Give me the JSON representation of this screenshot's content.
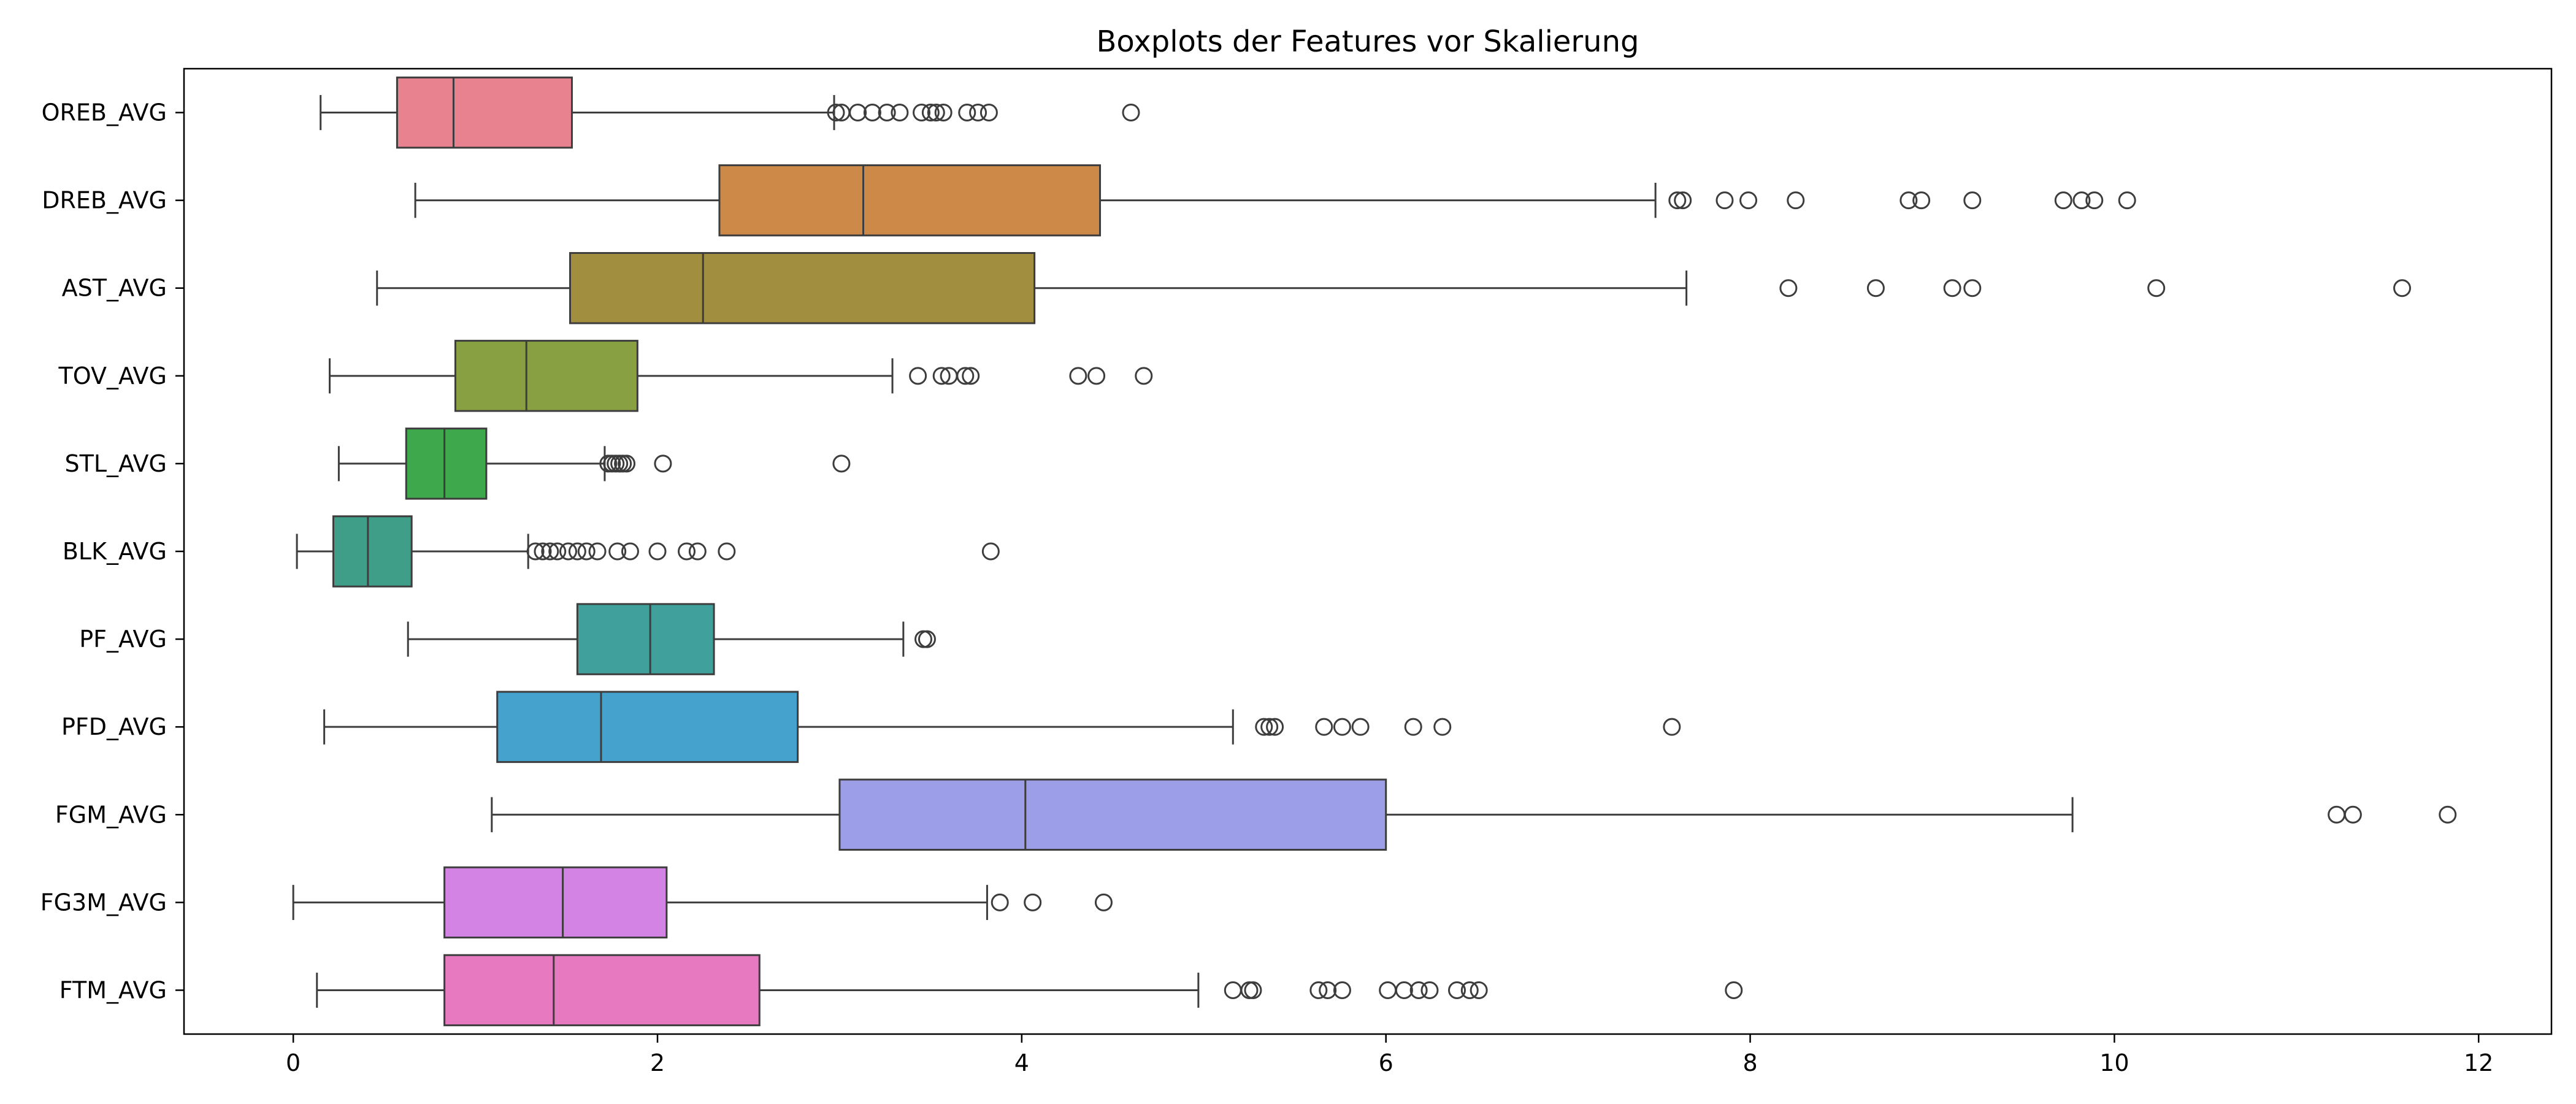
{
  "chart_data": {
    "type": "boxplot",
    "orientation": "horizontal",
    "title": "Boxplots der Features vor Skalierung",
    "xlabel": "",
    "ylabel": "",
    "xlim": [
      -0.6,
      12.4
    ],
    "xticks": [
      0,
      2,
      4,
      6,
      8,
      10,
      12
    ],
    "grid": false,
    "series": [
      {
        "name": "OREB_AVG",
        "color": "#e8828f",
        "whisker_low": 0.15,
        "q1": 0.57,
        "median": 0.88,
        "q3": 1.53,
        "whisker_high": 2.97,
        "outliers": [
          2.98,
          3.01,
          3.1,
          3.18,
          3.26,
          3.33,
          3.45,
          3.5,
          3.53,
          3.57,
          3.7,
          3.76,
          3.82,
          4.6
        ]
      },
      {
        "name": "DREB_AVG",
        "color": "#cd8948",
        "whisker_low": 0.67,
        "q1": 2.34,
        "median": 3.13,
        "q3": 4.43,
        "whisker_high": 7.48,
        "outliers": [
          7.6,
          7.63,
          7.86,
          7.99,
          8.25,
          8.87,
          8.94,
          9.22,
          9.72,
          9.82,
          9.89,
          10.07
        ]
      },
      {
        "name": "AST_AVG",
        "color": "#a28e3f",
        "whisker_low": 0.46,
        "q1": 1.52,
        "median": 2.25,
        "q3": 4.07,
        "whisker_high": 7.65,
        "outliers": [
          8.21,
          8.69,
          9.11,
          9.22,
          10.23,
          11.58
        ]
      },
      {
        "name": "TOV_AVG",
        "color": "#88a042",
        "whisker_low": 0.2,
        "q1": 0.89,
        "median": 1.28,
        "q3": 1.89,
        "whisker_high": 3.29,
        "outliers": [
          3.43,
          3.56,
          3.6,
          3.69,
          3.72,
          4.31,
          4.41,
          4.67
        ]
      },
      {
        "name": "STL_AVG",
        "color": "#3ea94c",
        "whisker_low": 0.25,
        "q1": 0.62,
        "median": 0.83,
        "q3": 1.06,
        "whisker_high": 1.71,
        "outliers": [
          1.73,
          1.75,
          1.77,
          1.79,
          1.81,
          1.83,
          2.03,
          3.01
        ]
      },
      {
        "name": "BLK_AVG",
        "color": "#3e9e88",
        "whisker_low": 0.02,
        "q1": 0.22,
        "median": 0.41,
        "q3": 0.65,
        "whisker_high": 1.29,
        "outliers": [
          1.33,
          1.37,
          1.41,
          1.45,
          1.51,
          1.56,
          1.61,
          1.67,
          1.78,
          1.85,
          2.0,
          2.16,
          2.22,
          2.38,
          3.83
        ]
      },
      {
        "name": "PF_AVG",
        "color": "#40a09b",
        "whisker_low": 0.63,
        "q1": 1.56,
        "median": 1.96,
        "q3": 2.31,
        "whisker_high": 3.35,
        "outliers": [
          3.46,
          3.48
        ]
      },
      {
        "name": "PFD_AVG",
        "color": "#45a2cc",
        "whisker_low": 0.17,
        "q1": 1.12,
        "median": 1.69,
        "q3": 2.77,
        "whisker_high": 5.16,
        "outliers": [
          5.33,
          5.36,
          5.39,
          5.66,
          5.76,
          5.86,
          6.15,
          6.31,
          7.57
        ]
      },
      {
        "name": "FGM_AVG",
        "color": "#9c9fe8",
        "whisker_low": 1.09,
        "q1": 3.0,
        "median": 4.02,
        "q3": 6.0,
        "whisker_high": 9.77,
        "outliers": [
          11.22,
          11.31,
          11.83
        ]
      },
      {
        "name": "FG3M_AVG",
        "color": "#d383e4",
        "whisker_low": 0.0,
        "q1": 0.83,
        "median": 1.48,
        "q3": 2.05,
        "whisker_high": 3.81,
        "outliers": [
          3.88,
          4.06,
          4.45
        ]
      },
      {
        "name": "FTM_AVG",
        "color": "#e679bf",
        "whisker_low": 0.13,
        "q1": 0.83,
        "median": 1.43,
        "q3": 2.56,
        "whisker_high": 4.97,
        "outliers": [
          5.16,
          5.25,
          5.27,
          5.63,
          5.68,
          5.76,
          6.01,
          6.1,
          6.18,
          6.24,
          6.39,
          6.46,
          6.51,
          7.91
        ]
      }
    ]
  }
}
